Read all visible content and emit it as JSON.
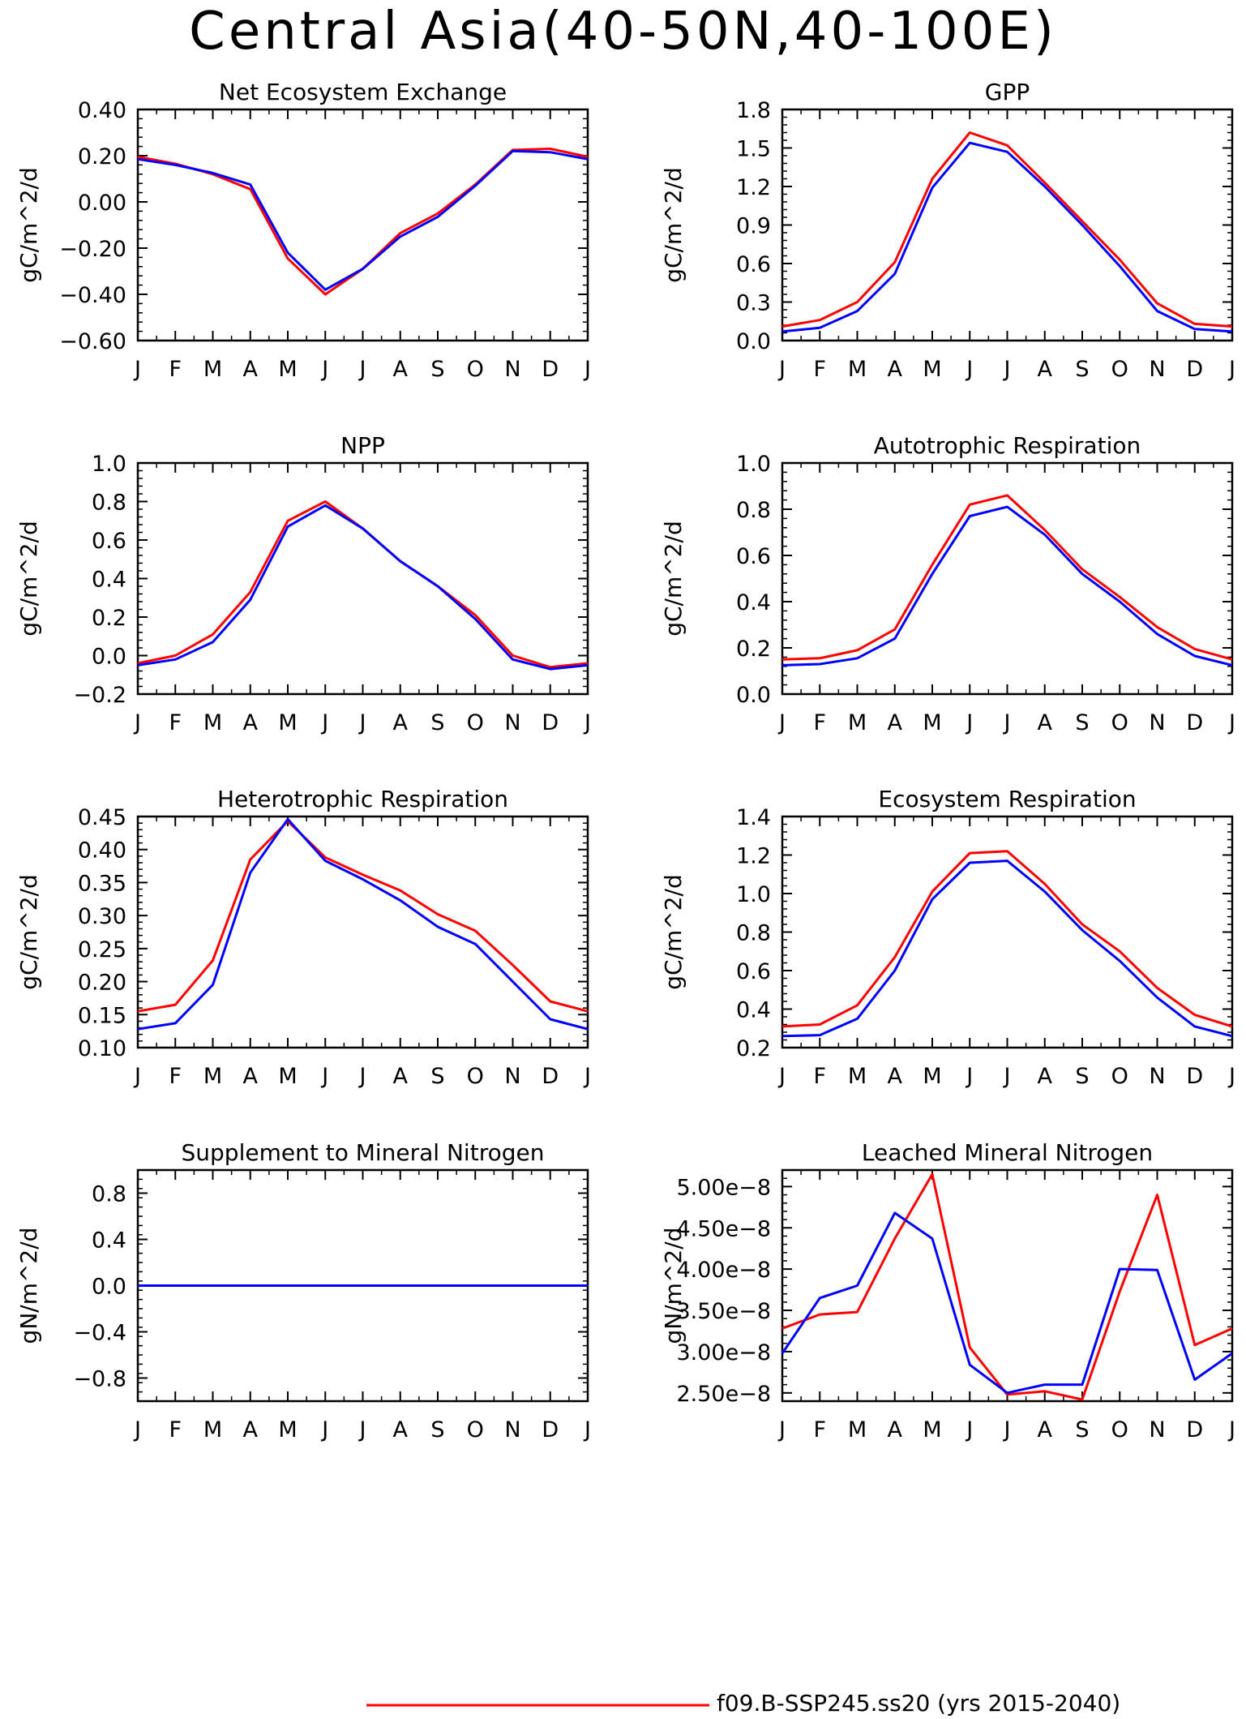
{
  "page_title": "Central Asia(40-50N,40-100E)",
  "months": [
    "J",
    "F",
    "M",
    "A",
    "M",
    "J",
    "J",
    "A",
    "S",
    "O",
    "N",
    "D",
    "J"
  ],
  "legend": {
    "entries": [
      {
        "label": "f09.B-SSP245.ss20 (yrs 2015-2040)",
        "color": "#ff0000"
      }
    ]
  },
  "chart_data": [
    {
      "type": "line",
      "title": "Net Ecosystem Exchange",
      "ylabel": "gC/m^2/d",
      "ylim": [
        -0.6,
        0.4
      ],
      "yticks": [
        -0.6,
        -0.4,
        -0.2,
        0.0,
        0.2,
        0.4
      ],
      "ytick_labels": [
        "−0.60",
        "−0.40",
        "−0.20",
        "0.00",
        "0.20",
        "0.40"
      ],
      "x": [
        "J",
        "F",
        "M",
        "A",
        "M",
        "J",
        "J",
        "A",
        "S",
        "O",
        "N",
        "D",
        "J"
      ],
      "series": [
        {
          "color": "#ff0000",
          "values": [
            0.195,
            0.165,
            0.12,
            0.055,
            -0.245,
            -0.4,
            -0.29,
            -0.135,
            -0.05,
            0.075,
            0.225,
            0.23,
            0.195
          ]
        },
        {
          "color": "#0000ff",
          "values": [
            0.185,
            0.16,
            0.125,
            0.075,
            -0.22,
            -0.38,
            -0.29,
            -0.15,
            -0.065,
            0.07,
            0.22,
            0.215,
            0.185
          ]
        }
      ]
    },
    {
      "type": "line",
      "title": "GPP",
      "ylabel": "gC/m^2/d",
      "ylim": [
        0,
        1.8
      ],
      "yticks": [
        0,
        0.3,
        0.6,
        0.9,
        1.2,
        1.5,
        1.8
      ],
      "ytick_labels": [
        "0.0",
        "0.3",
        "0.6",
        "0.9",
        "1.2",
        "1.5",
        "1.8"
      ],
      "x": [
        "J",
        "F",
        "M",
        "A",
        "M",
        "J",
        "J",
        "A",
        "S",
        "O",
        "N",
        "D",
        "J"
      ],
      "series": [
        {
          "color": "#ff0000",
          "values": [
            0.11,
            0.16,
            0.3,
            0.61,
            1.26,
            1.62,
            1.52,
            1.23,
            0.93,
            0.63,
            0.29,
            0.13,
            0.11
          ]
        },
        {
          "color": "#0000ff",
          "values": [
            0.07,
            0.1,
            0.23,
            0.52,
            1.19,
            1.54,
            1.47,
            1.2,
            0.9,
            0.58,
            0.23,
            0.09,
            0.07
          ]
        }
      ]
    },
    {
      "type": "line",
      "title": "NPP",
      "ylabel": "gC/m^2/d",
      "ylim": [
        -0.2,
        1.0
      ],
      "yticks": [
        -0.2,
        0.0,
        0.2,
        0.4,
        0.6,
        0.8,
        1.0
      ],
      "ytick_labels": [
        "−0.2",
        "0.0",
        "0.2",
        "0.4",
        "0.6",
        "0.8",
        "1.0"
      ],
      "x": [
        "J",
        "F",
        "M",
        "A",
        "M",
        "J",
        "J",
        "A",
        "S",
        "O",
        "N",
        "D",
        "J"
      ],
      "series": [
        {
          "color": "#ff0000",
          "values": [
            -0.04,
            0.0,
            0.11,
            0.33,
            0.7,
            0.8,
            0.66,
            0.49,
            0.36,
            0.21,
            0.0,
            -0.06,
            -0.04
          ]
        },
        {
          "color": "#0000ff",
          "values": [
            -0.05,
            -0.02,
            0.07,
            0.29,
            0.67,
            0.78,
            0.66,
            0.49,
            0.36,
            0.19,
            -0.02,
            -0.07,
            -0.05
          ]
        }
      ]
    },
    {
      "type": "line",
      "title": "Autotrophic Respiration",
      "ylabel": "gC/m^2/d",
      "ylim": [
        0,
        1.0
      ],
      "yticks": [
        0,
        0.2,
        0.4,
        0.6,
        0.8,
        1.0
      ],
      "ytick_labels": [
        "0.0",
        "0.2",
        "0.4",
        "0.6",
        "0.8",
        "1.0"
      ],
      "x": [
        "J",
        "F",
        "M",
        "A",
        "M",
        "J",
        "J",
        "A",
        "S",
        "O",
        "N",
        "D",
        "J"
      ],
      "series": [
        {
          "color": "#ff0000",
          "values": [
            0.15,
            0.155,
            0.19,
            0.28,
            0.56,
            0.82,
            0.86,
            0.71,
            0.54,
            0.42,
            0.29,
            0.195,
            0.15
          ]
        },
        {
          "color": "#0000ff",
          "values": [
            0.125,
            0.13,
            0.155,
            0.24,
            0.52,
            0.77,
            0.81,
            0.69,
            0.52,
            0.4,
            0.26,
            0.165,
            0.125
          ]
        }
      ]
    },
    {
      "type": "line",
      "title": "Heterotrophic Respiration",
      "ylabel": "gC/m^2/d",
      "ylim": [
        0.1,
        0.45
      ],
      "yticks": [
        0.1,
        0.15,
        0.2,
        0.25,
        0.3,
        0.35,
        0.4,
        0.45
      ],
      "ytick_labels": [
        "0.10",
        "0.15",
        "0.20",
        "0.25",
        "0.30",
        "0.35",
        "0.40",
        "0.45"
      ],
      "x": [
        "J",
        "F",
        "M",
        "A",
        "M",
        "J",
        "J",
        "A",
        "S",
        "O",
        "N",
        "D",
        "J"
      ],
      "series": [
        {
          "color": "#ff0000",
          "values": [
            0.155,
            0.165,
            0.232,
            0.385,
            0.443,
            0.388,
            0.362,
            0.338,
            0.302,
            0.277,
            0.225,
            0.17,
            0.155
          ]
        },
        {
          "color": "#0000ff",
          "values": [
            0.128,
            0.137,
            0.195,
            0.365,
            0.446,
            0.383,
            0.355,
            0.323,
            0.283,
            0.257,
            0.2,
            0.143,
            0.128
          ]
        }
      ]
    },
    {
      "type": "line",
      "title": "Ecosystem Respiration",
      "ylabel": "gC/m^2/d",
      "ylim": [
        0.2,
        1.4
      ],
      "yticks": [
        0.2,
        0.4,
        0.6,
        0.8,
        1.0,
        1.2,
        1.4
      ],
      "ytick_labels": [
        "0.2",
        "0.4",
        "0.6",
        "0.8",
        "1.0",
        "1.2",
        "1.4"
      ],
      "x": [
        "J",
        "F",
        "M",
        "A",
        "M",
        "J",
        "J",
        "A",
        "S",
        "O",
        "N",
        "D",
        "J"
      ],
      "series": [
        {
          "color": "#ff0000",
          "values": [
            0.31,
            0.32,
            0.42,
            0.67,
            1.01,
            1.21,
            1.22,
            1.05,
            0.84,
            0.7,
            0.51,
            0.37,
            0.31
          ]
        },
        {
          "color": "#0000ff",
          "values": [
            0.26,
            0.265,
            0.35,
            0.6,
            0.97,
            1.16,
            1.17,
            1.01,
            0.81,
            0.65,
            0.46,
            0.31,
            0.26
          ]
        }
      ]
    },
    {
      "type": "line",
      "title": "Supplement to Mineral Nitrogen",
      "ylabel": "gN/m^2/d",
      "ylim": [
        -1.0,
        1.0
      ],
      "yticks": [
        -0.8,
        -0.4,
        0.0,
        0.4,
        0.8
      ],
      "ytick_labels": [
        "−0.8",
        "−0.4",
        "0.0",
        "0.4",
        "0.8"
      ],
      "x": [
        "J",
        "F",
        "M",
        "A",
        "M",
        "J",
        "J",
        "A",
        "S",
        "O",
        "N",
        "D",
        "J"
      ],
      "series": [
        {
          "color": "#ff0000",
          "values": [
            0,
            0,
            0,
            0,
            0,
            0,
            0,
            0,
            0,
            0,
            0,
            0,
            0
          ]
        },
        {
          "color": "#0000ff",
          "values": [
            0,
            0,
            0,
            0,
            0,
            0,
            0,
            0,
            0,
            0,
            0,
            0,
            0
          ]
        }
      ]
    },
    {
      "type": "line",
      "title": "Leached Mineral Nitrogen",
      "ylabel": "gN/m^2/d",
      "ylim": [
        2.4e-08,
        5.2e-08
      ],
      "yticks": [
        2.5e-08,
        3e-08,
        3.5e-08,
        4e-08,
        4.5e-08,
        5e-08
      ],
      "ytick_labels": [
        "2.50e−8",
        "3.00e−8",
        "3.50e−8",
        "4.00e−8",
        "4.50e−8",
        "5.00e−8"
      ],
      "x": [
        "J",
        "F",
        "M",
        "A",
        "M",
        "J",
        "J",
        "A",
        "S",
        "O",
        "N",
        "D",
        "J"
      ],
      "series": [
        {
          "color": "#ff0000",
          "values": [
            3.28e-08,
            3.45e-08,
            3.48e-08,
            4.37e-08,
            5.15e-08,
            3.05e-08,
            2.48e-08,
            2.52e-08,
            2.42e-08,
            3.73e-08,
            4.9e-08,
            3.08e-08,
            3.28e-08
          ]
        },
        {
          "color": "#0000ff",
          "values": [
            2.98e-08,
            3.65e-08,
            3.8e-08,
            4.68e-08,
            4.37e-08,
            2.84e-08,
            2.5e-08,
            2.6e-08,
            2.6e-08,
            4e-08,
            3.99e-08,
            2.66e-08,
            2.98e-08
          ]
        }
      ]
    }
  ]
}
